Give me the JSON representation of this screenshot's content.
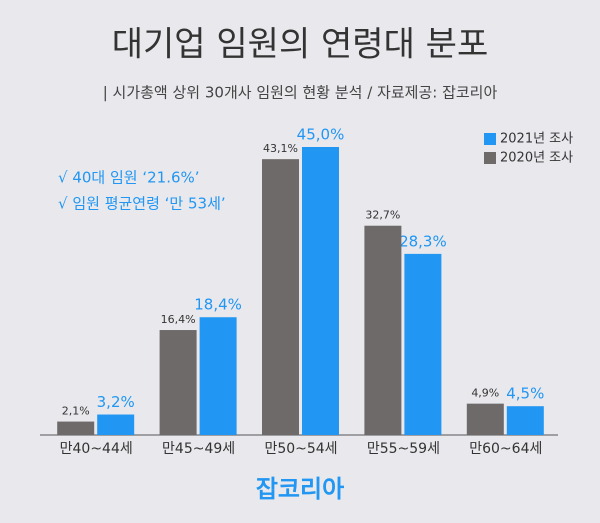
{
  "chart_data": {
    "type": "bar",
    "title": "대기업 임원의 연령대 분포",
    "subtitle": "| 시가총액 상위 30개사 임원의 현황 분석 / 자료제공: 잡코리아",
    "annotations": [
      "√ 40대 임원 ‘21.6%’",
      "√ 임원 평균연령 ‘만 53세’"
    ],
    "footer": "잡코리아",
    "categories": [
      "만40~44세",
      "만45~49세",
      "만50~54세",
      "만55~59세",
      "만60~64세"
    ],
    "series": [
      {
        "name": "2021년 조사",
        "color": "#2196f3",
        "values": [
          3.2,
          18.4,
          45.0,
          28.3,
          4.5
        ],
        "value_labels": [
          "3,2%",
          "18,4%",
          "45,0%",
          "28,3%",
          "4,5%"
        ]
      },
      {
        "name": "2020년 조사",
        "color": "#6e6a6a",
        "values": [
          2.1,
          16.4,
          43.1,
          32.7,
          4.9
        ],
        "value_labels": [
          "2,1%",
          "16,4%",
          "43,1%",
          "32,7%",
          "4,9%"
        ]
      }
    ]
  }
}
